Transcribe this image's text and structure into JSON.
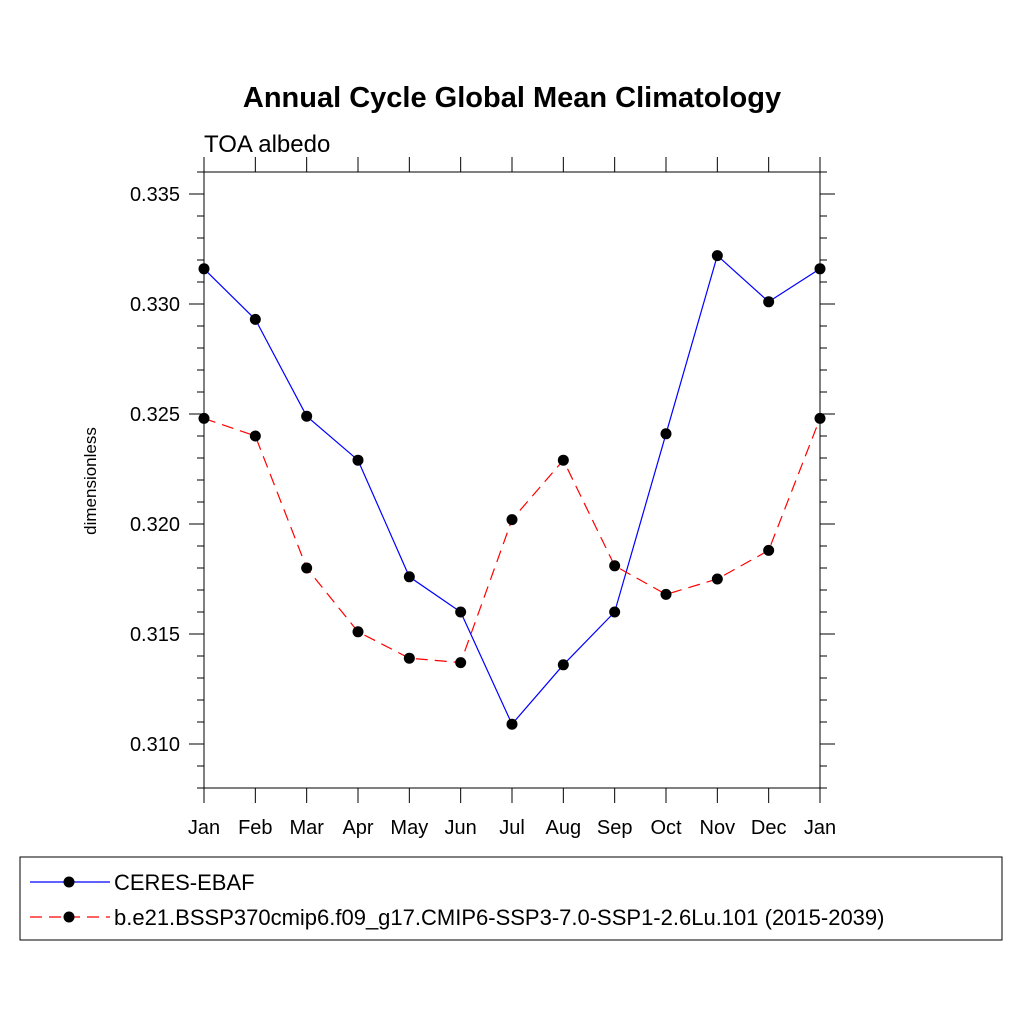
{
  "chart_data": {
    "type": "line",
    "title": "Annual Cycle Global Mean Climatology",
    "subtitle": "TOA albedo",
    "xlabel": "",
    "ylabel": "dimensionless",
    "categories": [
      "Jan",
      "Feb",
      "Mar",
      "Apr",
      "May",
      "Jun",
      "Jul",
      "Aug",
      "Sep",
      "Oct",
      "Nov",
      "Dec",
      "Jan"
    ],
    "ylim": [
      0.308,
      0.336
    ],
    "yticks": [
      0.31,
      0.315,
      0.32,
      0.325,
      0.33,
      0.335
    ],
    "ytick_labels": [
      "0.310",
      "0.315",
      "0.320",
      "0.325",
      "0.330",
      "0.335"
    ],
    "series": [
      {
        "name": "CERES-EBAF",
        "color": "#0000ff",
        "dash": "solid",
        "values": [
          0.3316,
          0.3293,
          0.3249,
          0.3229,
          0.3176,
          0.316,
          0.3109,
          0.3136,
          0.316,
          0.3241,
          0.3322,
          0.3301,
          0.3316
        ]
      },
      {
        "name": "b.e21.BSSP370cmip6.f09_g17.CMIP6-SSP3-7.0-SSP1-2.6Lu.101 (2015-2039)",
        "color": "#ff0000",
        "dash": "dashed",
        "values": [
          0.3248,
          0.324,
          0.318,
          0.3151,
          0.3139,
          0.3137,
          0.3202,
          0.3229,
          0.3181,
          0.3168,
          0.3175,
          0.3188,
          0.3248
        ]
      }
    ],
    "grid": false,
    "legend_position": "bottom"
  }
}
